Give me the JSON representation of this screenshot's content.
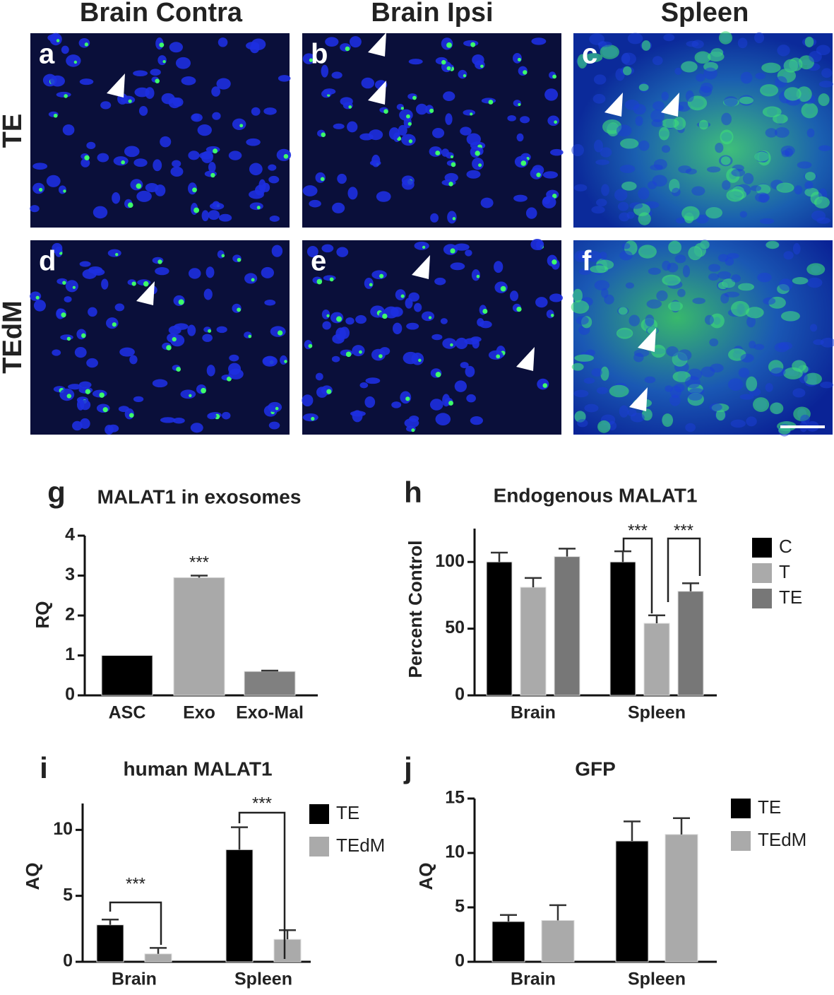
{
  "figure": {
    "columns": [
      "Brain Contra",
      "Brain Ipsi",
      "Spleen"
    ],
    "rows": [
      "TE",
      "TEdM"
    ],
    "panels": [
      "a",
      "b",
      "c",
      "d",
      "e",
      "f"
    ]
  },
  "chart_data": [
    {
      "type": "bar",
      "panel": "g",
      "title": "MALAT1  in exosomes",
      "ylabel": "RQ",
      "categories": [
        "ASC",
        "Exo",
        "Exo-Mal"
      ],
      "values": [
        1,
        2.95,
        0.6
      ],
      "errors": [
        0,
        0.05,
        0.02
      ],
      "colors": [
        "#000000",
        "#a9a9a9",
        "#808080"
      ],
      "ylim": [
        0,
        4
      ],
      "yticks": [
        0,
        1,
        2,
        3,
        4
      ],
      "annotations": [
        "***"
      ]
    },
    {
      "type": "bar",
      "panel": "h",
      "title": "Endogenous MALAT1",
      "ylabel": "Percent Control",
      "categories": [
        "Brain",
        "Spleen"
      ],
      "series": [
        {
          "name": "C",
          "color": "#000000",
          "values": [
            100,
            100
          ],
          "errors": [
            7,
            8
          ]
        },
        {
          "name": "T",
          "color": "#aaaaaa",
          "values": [
            81,
            54
          ],
          "errors": [
            7,
            6
          ]
        },
        {
          "name": "TE",
          "color": "#777777",
          "values": [
            104,
            78
          ],
          "errors": [
            6,
            6
          ]
        }
      ],
      "ylim": [
        0,
        125
      ],
      "yticks": [
        0,
        50,
        100
      ],
      "annotations": [
        "***",
        "***"
      ]
    },
    {
      "type": "bar",
      "panel": "i",
      "title": "human MALAT1",
      "ylabel": "AQ",
      "categories": [
        "Brain",
        "Spleen"
      ],
      "series": [
        {
          "name": "TE",
          "color": "#000000",
          "values": [
            2.8,
            8.5
          ],
          "errors": [
            0.4,
            1.7
          ]
        },
        {
          "name": "TEdM",
          "color": "#aaaaaa",
          "values": [
            0.6,
            1.7
          ],
          "errors": [
            0.45,
            0.7
          ]
        }
      ],
      "ylim": [
        0,
        12
      ],
      "yticks": [
        0,
        5,
        10
      ],
      "annotations": [
        "***",
        "***"
      ]
    },
    {
      "type": "bar",
      "panel": "j",
      "title": "GFP",
      "ylabel": "AQ",
      "categories": [
        "Brain",
        "Spleen"
      ],
      "series": [
        {
          "name": "TE",
          "color": "#000000",
          "values": [
            3.7,
            11.1
          ],
          "errors": [
            0.6,
            1.8
          ]
        },
        {
          "name": "TEdM",
          "color": "#aaaaaa",
          "values": [
            3.8,
            11.7
          ],
          "errors": [
            1.4,
            1.5
          ]
        }
      ],
      "ylim": [
        0,
        15
      ],
      "yticks": [
        0,
        5,
        10,
        15
      ],
      "annotations": []
    }
  ]
}
